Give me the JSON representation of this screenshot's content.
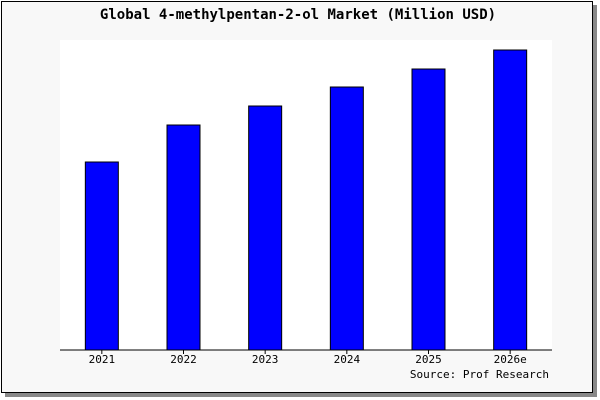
{
  "chart_data": {
    "type": "bar",
    "title": "Global 4-methylpentan-2-ol Market (Million USD)",
    "categories": [
      "2021",
      "2022",
      "2023",
      "2024",
      "2025",
      "2026e"
    ],
    "values": [
      188,
      225,
      244,
      263,
      281,
      300
    ],
    "color": "#0000ff",
    "ylim": [
      0,
      300
    ],
    "source": "Source: Prof Research"
  }
}
